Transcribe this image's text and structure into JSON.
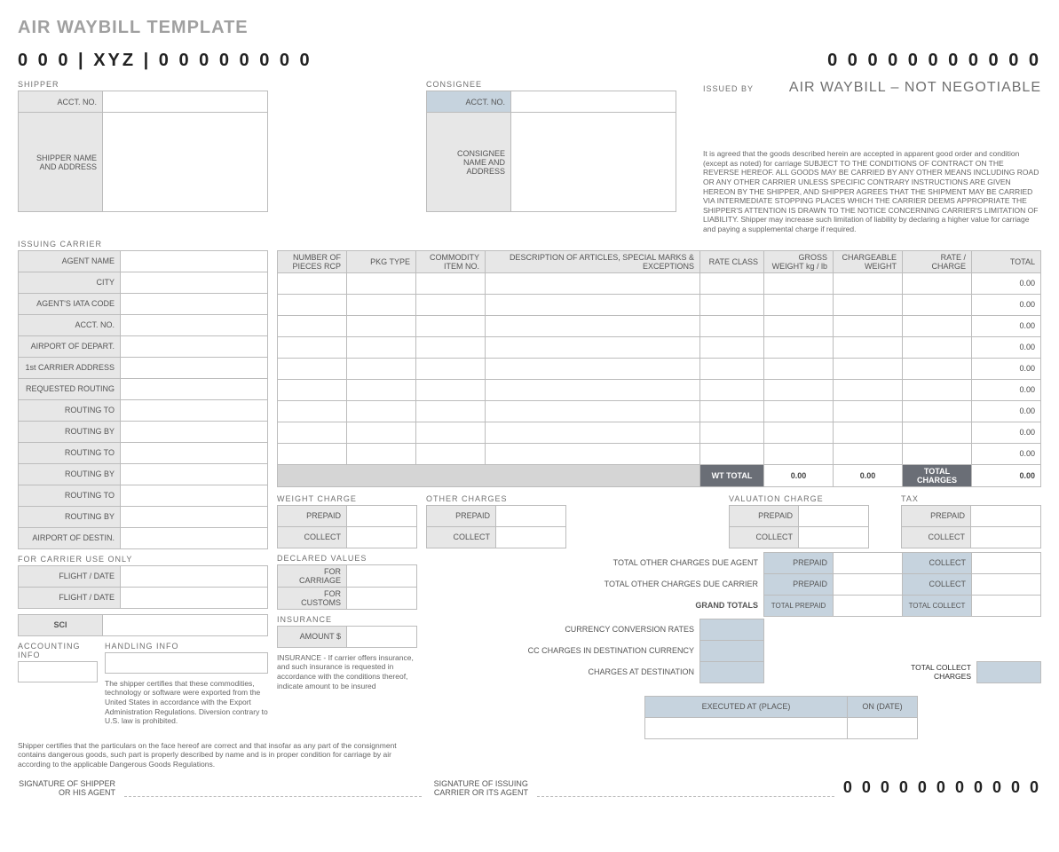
{
  "title": "AIR WAYBILL TEMPLATE",
  "code_left": "0 0 0 | XYZ | 0 0 0 0  0 0 0 0",
  "code_right": "0 0 0   0 0 0 0   0 0 0 0",
  "sections": {
    "shipper": "SHIPPER",
    "consignee": "CONSIGNEE",
    "issued_by": "ISSUED BY",
    "issuing_carrier": "ISSUING CARRIER",
    "for_carrier": "FOR CARRIER USE ONLY",
    "accounting": "ACCOUNTING INFO",
    "handling": "HANDLING INFO",
    "weight_charge": "WEIGHT CHARGE",
    "other_charges": "OTHER CHARGES",
    "valuation": "VALUATION CHARGE",
    "tax": "TAX",
    "declared": "DECLARED VALUES",
    "insurance": "INSURANCE"
  },
  "labels": {
    "acct_no": "ACCT. NO.",
    "shipper_addr": "SHIPPER NAME AND ADDRESS",
    "consignee_addr": "CONSIGNEE NAME AND ADDRESS",
    "issued_title": "AIR WAYBILL – NOT NEGOTIABLE",
    "agent_name": "AGENT NAME",
    "city": "CITY",
    "iata": "AGENT'S IATA CODE",
    "depart": "AIRPORT OF DEPART.",
    "first_carrier": "1st CARRIER ADDRESS",
    "req_routing": "REQUESTED ROUTING",
    "routing_to": "ROUTING TO",
    "routing_by": "ROUTING BY",
    "destin": "AIRPORT OF DESTIN.",
    "flight_date": "FLIGHT / DATE",
    "sci": "SCI",
    "prepaid": "PREPAID",
    "collect": "COLLECT",
    "carriage": "FOR CARRIAGE",
    "customs": "FOR CUSTOMS",
    "amount": "AMOUNT $",
    "due_agent": "TOTAL OTHER CHARGES DUE AGENT",
    "due_carrier": "TOTAL OTHER CHARGES DUE CARRIER",
    "grand_totals": "GRAND TOTALS",
    "total_prepaid": "TOTAL PREPAID",
    "total_collect": "TOTAL COLLECT",
    "ccr": "CURRENCY CONVERSION RATES",
    "cc_dest": "CC CHARGES IN DESTINATION CURRENCY",
    "charges_dest": "CHARGES AT DESTINATION",
    "total_collect_charges": "TOTAL COLLECT CHARGES",
    "executed": "EXECUTED AT (PLACE)",
    "on_date": "ON (DATE)",
    "sig_shipper": "SIGNATURE OF SHIPPER OR HIS AGENT",
    "sig_carrier": "SIGNATURE OF ISSUING CARRIER OR ITS AGENT"
  },
  "articles": {
    "headers": [
      "NUMBER OF PIECES RCP",
      "PKG TYPE",
      "COMMODITY ITEM NO.",
      "DESCRIPTION OF ARTICLES, SPECIAL MARKS & EXCEPTIONS",
      "RATE CLASS",
      "GROSS WEIGHT kg / lb",
      "CHARGEABLE WEIGHT",
      "RATE / CHARGE",
      "TOTAL"
    ],
    "row_total": "0.00",
    "wt_total_label": "WT TOTAL",
    "wt_total": "0.00",
    "charges_label": "TOTAL CHARGES",
    "charges_total": "0.00",
    "row_count": 9
  },
  "disclaimer": "It is agreed that the goods described herein are accepted in apparent good order and condition (except as noted) for carriage SUBJECT TO THE CONDITIONS OF CONTRACT ON THE REVERSE HEREOF. ALL GOODS MAY BE CARRIED BY ANY OTHER MEANS INCLUDING ROAD OR ANY OTHER CARRIER UNLESS SPECIFIC CONTRARY INSTRUCTIONS ARE GIVEN HEREON BY THE SHIPPER, AND SHIPPER AGREES THAT THE SHIPMENT MAY BE CARRIED VIA INTERMEDIATE STOPPING PLACES WHICH THE CARRIER DEEMS APPROPRIATE THE SHIPPER'S ATTENTION IS DRAWN TO THE NOTICE CONCERNING CARRIER'S LIMITATION OF LIABILITY. Shipper may increase such limitation of liability by declaring a higher value for carriage and paying a supplemental charge if required.",
  "cert_text": "The shipper certifies that these commodities, technology or software were exported from the United States in accordance with the Export Administration Regulations.  Diversion contrary to U.S. law is prohibited.",
  "ins_text": "INSURANCE - If carrier offers insurance, and such insurance is requested in accordance with the conditions thereof, indicate amount to be insured",
  "danger_text": "Shipper certifies that the particulars on the face hereof are correct and that insofar as any part of the consignment contains dangerous goods, such part is properly described by name and is in proper condition for carriage by air according to the applicable Dangerous Goods Regulations.",
  "colors": {
    "header_dark": "#2c3342",
    "gray_bg": "#e7e7e7",
    "blue_bg": "#c6d3de",
    "border": "#bcbcbc",
    "title_gray": "#a0a0a0"
  }
}
